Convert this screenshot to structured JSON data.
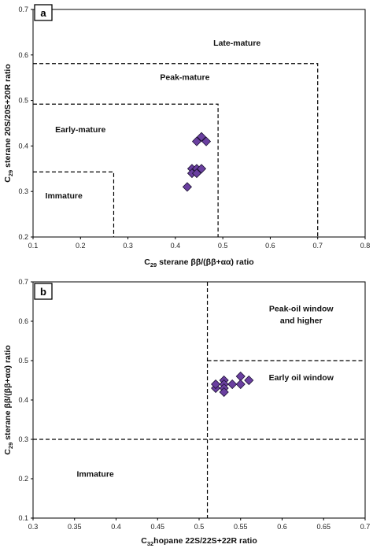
{
  "chart_data": [
    {
      "type": "scatter",
      "panel": "a",
      "xlabel": {
        "prefix": "C",
        "sub": "29",
        "rest": " sterane ββ/(ββ+αα) ratio"
      },
      "ylabel": {
        "prefix": "C",
        "sub": "29",
        "rest": " sterane 20S/20S+20R ratio"
      },
      "xlim": [
        0.1,
        0.8
      ],
      "ylim": [
        0.2,
        0.7
      ],
      "xticks": [
        0.1,
        0.2,
        0.3,
        0.4,
        0.5,
        0.6,
        0.7,
        0.8
      ],
      "yticks": [
        0.2,
        0.3,
        0.4,
        0.5,
        0.6,
        0.7
      ],
      "xtick_labels": [
        "0.1",
        "0.2",
        "0.3",
        "0.4",
        "0.5",
        "0.6",
        "0.7",
        "0.8"
      ],
      "ytick_labels": [
        "0.2",
        "0.3",
        "0.4",
        "0.5",
        "0.6",
        "0.7"
      ],
      "points": [
        {
          "x": 0.445,
          "y": 0.41
        },
        {
          "x": 0.455,
          "y": 0.42
        },
        {
          "x": 0.465,
          "y": 0.41
        },
        {
          "x": 0.435,
          "y": 0.35
        },
        {
          "x": 0.445,
          "y": 0.35
        },
        {
          "x": 0.455,
          "y": 0.35
        },
        {
          "x": 0.435,
          "y": 0.34
        },
        {
          "x": 0.445,
          "y": 0.34
        },
        {
          "x": 0.425,
          "y": 0.31
        }
      ],
      "boundaries": [
        {
          "type": "step",
          "x": 0.27,
          "y": 0.343
        },
        {
          "type": "step",
          "x": 0.49,
          "y": 0.492
        },
        {
          "type": "step",
          "x": 0.7,
          "y": 0.581
        }
      ],
      "regions": [
        {
          "label": "Late-mature",
          "x": 0.53,
          "y": 0.62
        },
        {
          "label": "Peak-mature",
          "x": 0.42,
          "y": 0.545
        },
        {
          "label": "Early-mature",
          "x": 0.2,
          "y": 0.43
        },
        {
          "label": "Immature",
          "x": 0.165,
          "y": 0.285
        }
      ],
      "marker_color": "#6a3fa0",
      "grid": false
    },
    {
      "type": "scatter",
      "panel": "b",
      "xlabel": {
        "prefix": "C",
        "sub": "32",
        "rest": "hopane 22S/22S+22R ratio"
      },
      "ylabel": {
        "prefix": "C",
        "sub": "29",
        "rest": " sterane ββ/(ββ+αα) ratio"
      },
      "xlim": [
        0.3,
        0.7
      ],
      "ylim": [
        0.1,
        0.7
      ],
      "xticks": [
        0.3,
        0.35,
        0.4,
        0.45,
        0.5,
        0.55,
        0.6,
        0.65,
        0.7
      ],
      "yticks": [
        0.1,
        0.2,
        0.3,
        0.4,
        0.5,
        0.6,
        0.7
      ],
      "xtick_labels": [
        "0.3",
        "0.35",
        "0.4",
        "0.45",
        "0.5",
        "0.55",
        "0.6",
        "0.65",
        "0.7"
      ],
      "ytick_labels": [
        "0.1",
        "0.2",
        "0.3",
        "0.4",
        "0.5",
        "0.6",
        "0.7"
      ],
      "points": [
        {
          "x": 0.52,
          "y": 0.43
        },
        {
          "x": 0.52,
          "y": 0.44
        },
        {
          "x": 0.53,
          "y": 0.45
        },
        {
          "x": 0.53,
          "y": 0.44
        },
        {
          "x": 0.53,
          "y": 0.43
        },
        {
          "x": 0.53,
          "y": 0.42
        },
        {
          "x": 0.54,
          "y": 0.44
        },
        {
          "x": 0.55,
          "y": 0.46
        },
        {
          "x": 0.55,
          "y": 0.44
        },
        {
          "x": 0.56,
          "y": 0.45
        }
      ],
      "boundaries": [
        {
          "type": "vline",
          "x": 0.51
        },
        {
          "type": "hline",
          "y": 0.3
        },
        {
          "type": "hline_from",
          "x0": 0.51,
          "y": 0.5
        }
      ],
      "regions": [
        {
          "label": "Peak-oil window",
          "x": 0.623,
          "y": 0.625
        },
        {
          "label": "and higher",
          "x": 0.623,
          "y": 0.595
        },
        {
          "label": "Early oil window",
          "x": 0.623,
          "y": 0.45
        },
        {
          "label": "Immature",
          "x": 0.375,
          "y": 0.205
        }
      ],
      "marker_color": "#6a3fa0",
      "grid": false
    }
  ]
}
